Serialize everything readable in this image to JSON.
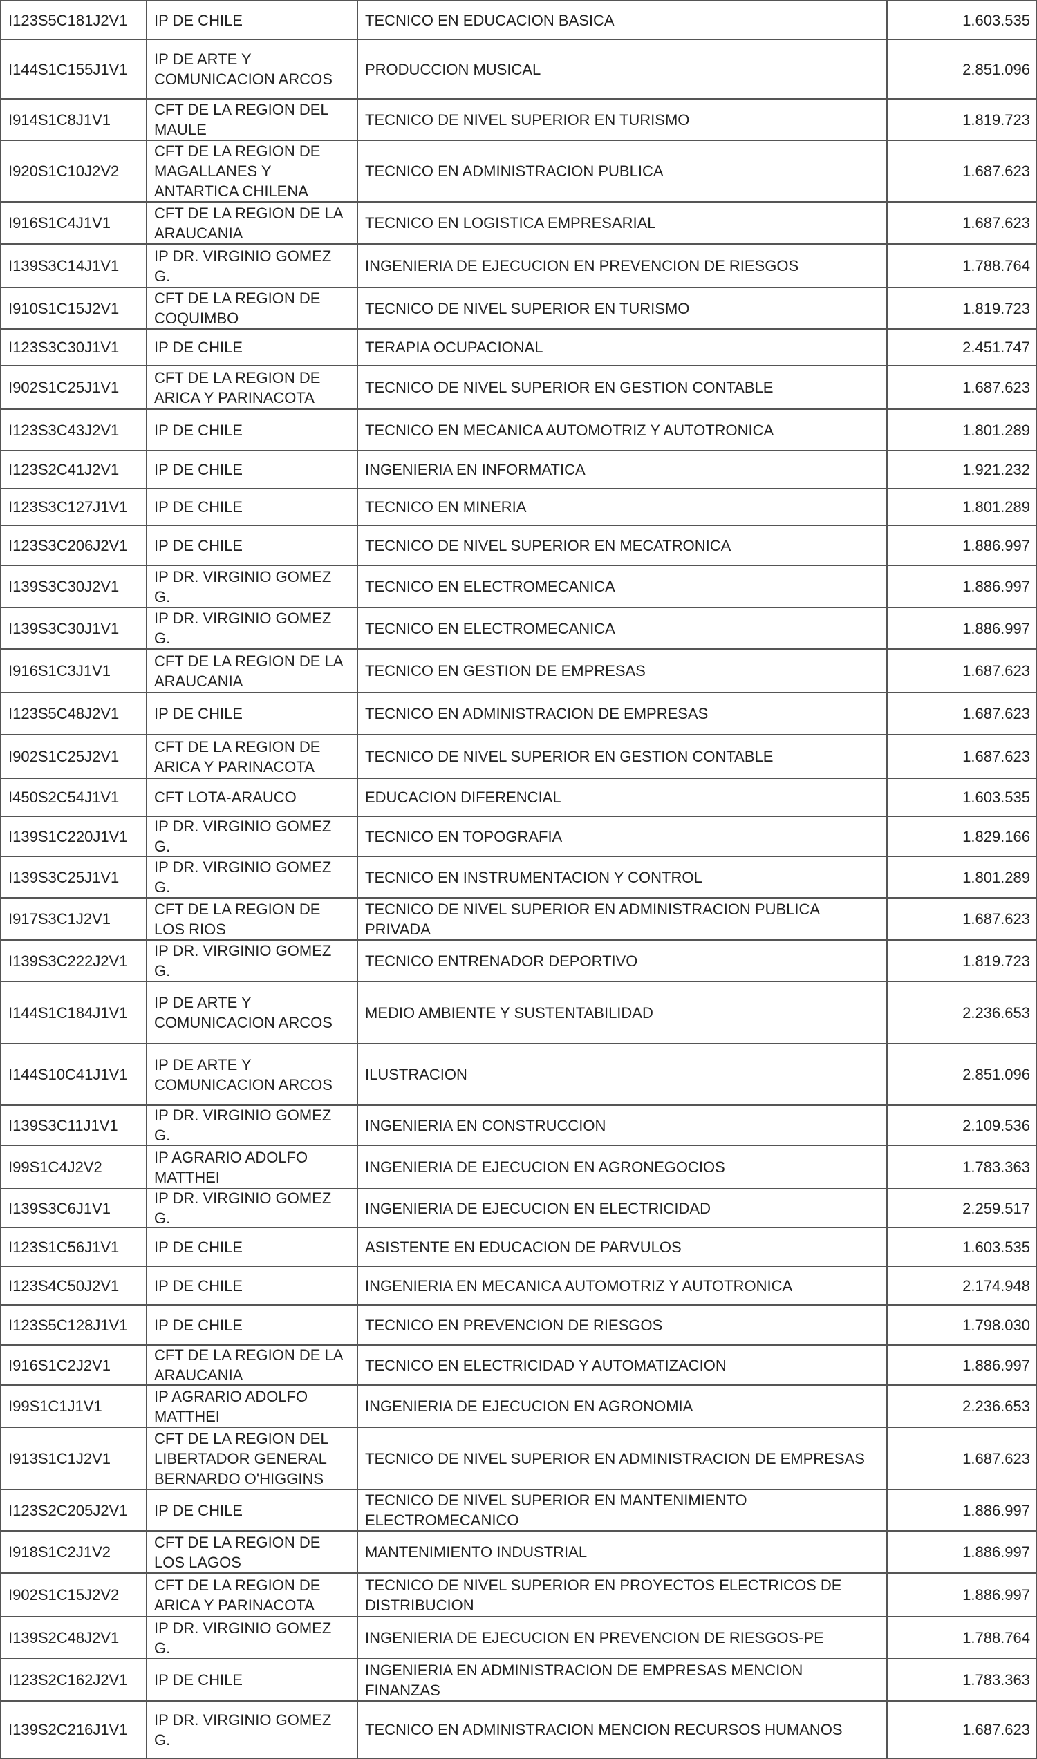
{
  "table": {
    "rows": [
      [
        "I123S5C181J2V1",
        "IP DE CHILE",
        "TECNICO EN EDUCACION BASICA",
        "1.603.535"
      ],
      [
        "I144S1C155J1V1",
        "IP DE ARTE Y COMUNICACION ARCOS",
        "PRODUCCION MUSICAL",
        "2.851.096"
      ],
      [
        "I914S1C8J1V1",
        "CFT DE LA REGION DEL MAULE",
        "TECNICO DE NIVEL SUPERIOR EN TURISMO",
        "1.819.723"
      ],
      [
        "I920S1C10J2V2",
        "CFT DE LA REGION DE MAGALLANES Y ANTARTICA CHILENA",
        "TECNICO EN ADMINISTRACION PUBLICA",
        "1.687.623"
      ],
      [
        "I916S1C4J1V1",
        "CFT DE LA REGION DE LA ARAUCANIA",
        "TECNICO EN LOGISTICA EMPRESARIAL",
        "1.687.623"
      ],
      [
        "I139S3C14J1V1",
        "IP DR. VIRGINIO GOMEZ G.",
        "INGENIERIA DE EJECUCION EN PREVENCION DE RIESGOS",
        "1.788.764"
      ],
      [
        "I910S1C15J2V1",
        "CFT DE LA REGION DE COQUIMBO",
        "TECNICO DE NIVEL SUPERIOR EN TURISMO",
        "1.819.723"
      ],
      [
        "I123S3C30J1V1",
        "IP DE CHILE",
        "TERAPIA OCUPACIONAL",
        "2.451.747"
      ],
      [
        "I902S1C25J1V1",
        "CFT DE LA REGION DE ARICA Y PARINACOTA",
        "TECNICO DE NIVEL SUPERIOR EN GESTION CONTABLE",
        "1.687.623"
      ],
      [
        "I123S3C43J2V1",
        "IP DE CHILE",
        "TECNICO EN MECANICA AUTOMOTRIZ Y AUTOTRONICA",
        "1.801.289"
      ],
      [
        "I123S2C41J2V1",
        "IP DE CHILE",
        "INGENIERIA EN INFORMATICA",
        "1.921.232"
      ],
      [
        "I123S3C127J1V1",
        "IP DE CHILE",
        "TECNICO EN MINERIA",
        "1.801.289"
      ],
      [
        "I123S3C206J2V1",
        "IP DE CHILE",
        "TECNICO DE NIVEL SUPERIOR EN MECATRONICA",
        "1.886.997"
      ],
      [
        "I139S3C30J2V1",
        "IP DR. VIRGINIO GOMEZ G.",
        "TECNICO EN ELECTROMECANICA",
        "1.886.997"
      ],
      [
        "I139S3C30J1V1",
        "IP DR. VIRGINIO GOMEZ G.",
        "TECNICO EN ELECTROMECANICA",
        "1.886.997"
      ],
      [
        "I916S1C3J1V1",
        "CFT DE LA REGION DE LA ARAUCANIA",
        "TECNICO EN GESTION DE EMPRESAS",
        "1.687.623"
      ],
      [
        "I123S5C48J2V1",
        "IP DE CHILE",
        "TECNICO EN ADMINISTRACION DE EMPRESAS",
        "1.687.623"
      ],
      [
        "I902S1C25J2V1",
        "CFT DE LA REGION DE ARICA Y PARINACOTA",
        "TECNICO DE NIVEL SUPERIOR EN GESTION CONTABLE",
        "1.687.623"
      ],
      [
        "I450S2C54J1V1",
        "CFT LOTA-ARAUCO",
        "EDUCACION DIFERENCIAL",
        "1.603.535"
      ],
      [
        "I139S1C220J1V1",
        "IP DR. VIRGINIO GOMEZ G.",
        "TECNICO EN TOPOGRAFIA",
        "1.829.166"
      ],
      [
        "I139S3C25J1V1",
        "IP DR. VIRGINIO GOMEZ G.",
        "TECNICO EN INSTRUMENTACION Y CONTROL",
        "1.801.289"
      ],
      [
        "I917S3C1J2V1",
        "CFT DE LA REGION DE LOS RIOS",
        "TECNICO DE NIVEL SUPERIOR EN ADMINISTRACION PUBLICA PRIVADA",
        "1.687.623"
      ],
      [
        "I139S3C222J2V1",
        "IP DR. VIRGINIO GOMEZ G.",
        "TECNICO ENTRENADOR DEPORTIVO",
        "1.819.723"
      ],
      [
        "I144S1C184J1V1",
        "IP DE ARTE Y COMUNICACION ARCOS",
        "MEDIO AMBIENTE Y SUSTENTABILIDAD",
        "2.236.653"
      ],
      [
        "I144S10C41J1V1",
        "IP DE ARTE Y COMUNICACION ARCOS",
        "ILUSTRACION",
        "2.851.096"
      ],
      [
        "I139S3C11J1V1",
        "IP DR. VIRGINIO GOMEZ G.",
        "INGENIERIA EN CONSTRUCCION",
        "2.109.536"
      ],
      [
        "I99S1C4J2V2",
        "IP AGRARIO ADOLFO MATTHEI",
        "INGENIERIA DE EJECUCION EN AGRONEGOCIOS",
        "1.783.363"
      ],
      [
        "I139S3C6J1V1",
        "IP DR. VIRGINIO GOMEZ G.",
        "INGENIERIA DE EJECUCION EN ELECTRICIDAD",
        "2.259.517"
      ],
      [
        "I123S1C56J1V1",
        "IP DE CHILE",
        "ASISTENTE EN EDUCACION DE PARVULOS",
        "1.603.535"
      ],
      [
        "I123S4C50J2V1",
        "IP DE CHILE",
        "INGENIERIA EN MECANICA AUTOMOTRIZ Y AUTOTRONICA",
        "2.174.948"
      ],
      [
        "I123S5C128J1V1",
        "IP DE CHILE",
        "TECNICO EN PREVENCION DE RIESGOS",
        "1.798.030"
      ],
      [
        "I916S1C2J2V1",
        "CFT DE LA REGION DE LA ARAUCANIA",
        "TECNICO EN ELECTRICIDAD Y AUTOMATIZACION",
        "1.886.997"
      ],
      [
        "I99S1C1J1V1",
        "IP AGRARIO ADOLFO MATTHEI",
        "INGENIERIA DE EJECUCION EN AGRONOMIA",
        "2.236.653"
      ],
      [
        "I913S1C1J2V1",
        "CFT DE LA REGION DEL LIBERTADOR GENERAL BERNARDO O'HIGGINS",
        "TECNICO DE NIVEL SUPERIOR EN ADMINISTRACION DE EMPRESAS",
        "1.687.623"
      ],
      [
        "I123S2C205J2V1",
        "IP DE CHILE",
        "TECNICO DE NIVEL SUPERIOR EN MANTENIMIENTO ELECTROMECANICO",
        "1.886.997"
      ],
      [
        "I918S1C2J1V2",
        "CFT DE LA REGION DE LOS LAGOS",
        "MANTENIMIENTO INDUSTRIAL",
        "1.886.997"
      ],
      [
        "I902S1C15J2V2",
        "CFT DE LA REGION DE ARICA Y PARINACOTA",
        "TECNICO DE NIVEL SUPERIOR EN PROYECTOS ELECTRICOS DE DISTRIBUCION",
        "1.886.997"
      ],
      [
        "I139S2C48J2V1",
        "IP DR. VIRGINIO GOMEZ G.",
        "INGENIERIA DE EJECUCION EN PREVENCION DE RIESGOS-PE",
        "1.788.764"
      ],
      [
        "I123S2C162J2V1",
        "IP DE CHILE",
        "INGENIERIA EN ADMINISTRACION DE EMPRESAS MENCION FINANZAS",
        "1.783.363"
      ],
      [
        "I139S2C216J1V1",
        "IP DR. VIRGINIO GOMEZ G.",
        "TECNICO EN ADMINISTRACION MENCION RECURSOS HUMANOS",
        "1.687.623"
      ]
    ]
  }
}
